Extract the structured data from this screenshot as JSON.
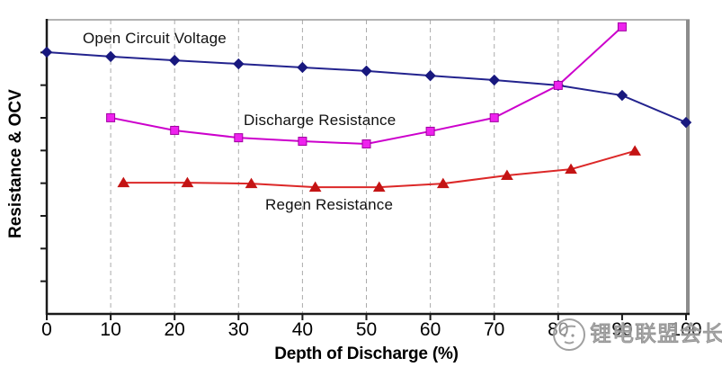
{
  "chart_data": {
    "type": "line",
    "title": "",
    "x_axis": {
      "label": "Depth of Discharge (%)",
      "min": 0,
      "max": 100,
      "tick_values": [
        0,
        10,
        20,
        30,
        40,
        50,
        60,
        70,
        80,
        90,
        100
      ],
      "tick_labels": [
        "0",
        "10",
        "20",
        "30",
        "40",
        "50",
        "60",
        "70",
        "80",
        "90",
        "100"
      ],
      "gridlines_at": [
        10,
        20,
        30,
        40,
        50,
        60,
        70,
        80
      ],
      "gridline_style": "dashed"
    },
    "y_axis": {
      "label": "Resistance & OCV",
      "tick_labels_visible": false,
      "unlabeled_tick_count": 8,
      "note": "Y-axis tick marks carry no numeric labels; series y-values are normalized 0-1 fractions of the plot height read from the figure"
    },
    "series": [
      {
        "name": "Open Circuit Voltage",
        "marker": "diamond",
        "x": [
          0,
          10,
          20,
          30,
          40,
          50,
          60,
          70,
          80,
          90,
          100
        ],
        "y": [
          0.89,
          0.875,
          0.862,
          0.85,
          0.838,
          0.826,
          0.81,
          0.795,
          0.777,
          0.743,
          0.651
        ]
      },
      {
        "name": "Discharge Resistance",
        "marker": "square",
        "x": [
          10,
          20,
          30,
          40,
          50,
          60,
          70,
          80,
          90
        ],
        "y": [
          0.667,
          0.624,
          0.599,
          0.587,
          0.578,
          0.621,
          0.667,
          0.777,
          0.976
        ]
      },
      {
        "name": "Regen Resistance",
        "marker": "triangle",
        "x": [
          12,
          22,
          32,
          42,
          52,
          62,
          72,
          82,
          92
        ],
        "y": [
          0.446,
          0.446,
          0.443,
          0.431,
          0.431,
          0.443,
          0.471,
          0.492,
          0.554
        ]
      }
    ],
    "legend": "inline-annotations"
  },
  "watermark": {
    "text": "锂电联盟会长",
    "logo": "circular-avatar-logo"
  },
  "colors": {
    "ocv_line": "#23238E",
    "ocv_marker": "#18187E",
    "discharge_line": "#CC00CC",
    "discharge_marker": "#EE22EE",
    "discharge_marker_border": "#A000A0",
    "regen_line": "#DC2828",
    "regen_marker": "#C41414",
    "gridline": "#ABABAB",
    "axis": "#1A1A1A",
    "frame_top": "#9A9A9A",
    "frame_right": "#8C8C8C",
    "text": "#000000",
    "watermark": "#8F8F8F"
  }
}
